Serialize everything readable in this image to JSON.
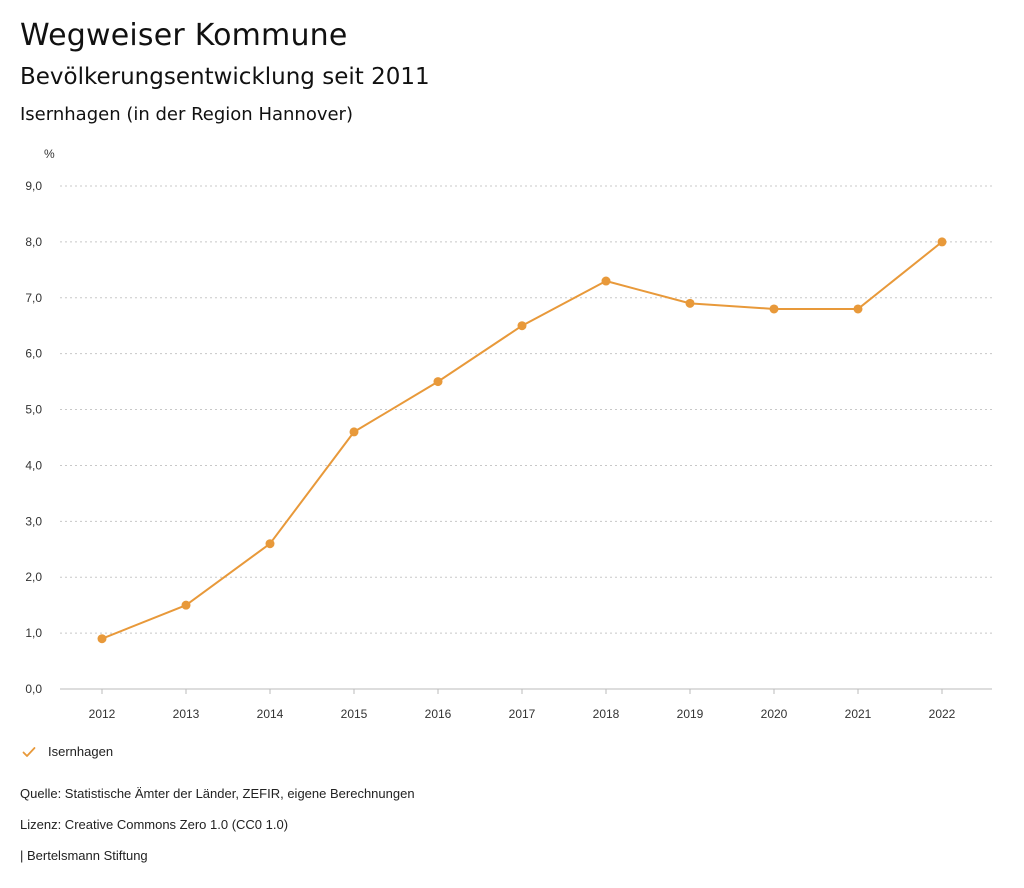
{
  "header": {
    "title": "Wegweiser Kommune",
    "subtitle": "Bevölkerungsentwicklung seit 2011",
    "region": "Isernhagen (in der Region Hannover)"
  },
  "chart_data": {
    "type": "line",
    "ylabel": "%",
    "x": [
      "2012",
      "2013",
      "2014",
      "2015",
      "2016",
      "2017",
      "2018",
      "2019",
      "2020",
      "2021",
      "2022"
    ],
    "series": [
      {
        "name": "Isernhagen",
        "color": "#e8993a",
        "values": [
          0.9,
          1.5,
          2.6,
          4.6,
          5.5,
          6.5,
          7.3,
          6.9,
          6.8,
          6.8,
          8.0
        ]
      }
    ],
    "ylim": [
      0,
      9
    ],
    "yticks": [
      "0,0",
      "1,0",
      "2,0",
      "3,0",
      "4,0",
      "5,0",
      "6,0",
      "7,0",
      "8,0",
      "9,0"
    ],
    "grid": true,
    "legend": "bottom-left"
  },
  "footer": {
    "source": "Quelle: Statistische Ämter der Länder, ZEFIR, eigene Berechnungen",
    "license": "Lizenz: Creative Commons Zero 1.0 (CC0 1.0)",
    "publisher": "| Bertelsmann Stiftung"
  }
}
